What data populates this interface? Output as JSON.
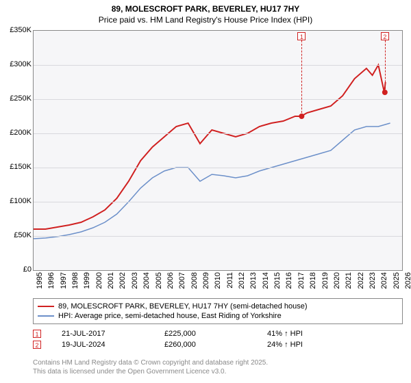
{
  "title_line1": "89, MOLESCROFT PARK, BEVERLEY, HU17 7HY",
  "title_line2": "Price paid vs. HM Land Registry's House Price Index (HPI)",
  "chart": {
    "type": "line",
    "background_color": "#f6f6f8",
    "border_color": "#888888",
    "grid_color": "#d8d8dd",
    "x_years": [
      1995,
      1996,
      1997,
      1998,
      1999,
      2000,
      2001,
      2002,
      2003,
      2004,
      2005,
      2006,
      2007,
      2008,
      2009,
      2010,
      2011,
      2012,
      2013,
      2014,
      2015,
      2016,
      2017,
      2018,
      2019,
      2020,
      2021,
      2022,
      2023,
      2024,
      2025,
      2026
    ],
    "xlim": [
      1995,
      2026
    ],
    "ylim": [
      0,
      350000
    ],
    "ytick_step": 50000,
    "yticks": [
      {
        "v": 0,
        "label": "£0"
      },
      {
        "v": 50000,
        "label": "£50K"
      },
      {
        "v": 100000,
        "label": "£100K"
      },
      {
        "v": 150000,
        "label": "£150K"
      },
      {
        "v": 200000,
        "label": "£200K"
      },
      {
        "v": 250000,
        "label": "£250K"
      },
      {
        "v": 300000,
        "label": "£300K"
      },
      {
        "v": 350000,
        "label": "£350K"
      }
    ],
    "series": [
      {
        "name": "price_paid",
        "color": "#d02020",
        "line_width": 2,
        "points": [
          [
            1995,
            60000
          ],
          [
            1996,
            60000
          ],
          [
            1997,
            63000
          ],
          [
            1998,
            66000
          ],
          [
            1999,
            70000
          ],
          [
            2000,
            78000
          ],
          [
            2001,
            88000
          ],
          [
            2002,
            105000
          ],
          [
            2003,
            130000
          ],
          [
            2004,
            160000
          ],
          [
            2005,
            180000
          ],
          [
            2006,
            195000
          ],
          [
            2007,
            210000
          ],
          [
            2008,
            215000
          ],
          [
            2008.5,
            200000
          ],
          [
            2009,
            185000
          ],
          [
            2009.5,
            195000
          ],
          [
            2010,
            205000
          ],
          [
            2011,
            200000
          ],
          [
            2012,
            195000
          ],
          [
            2013,
            200000
          ],
          [
            2014,
            210000
          ],
          [
            2015,
            215000
          ],
          [
            2016,
            218000
          ],
          [
            2017,
            225000
          ],
          [
            2017.5,
            225000
          ],
          [
            2018,
            230000
          ],
          [
            2019,
            235000
          ],
          [
            2020,
            240000
          ],
          [
            2021,
            255000
          ],
          [
            2022,
            280000
          ],
          [
            2023,
            295000
          ],
          [
            2023.5,
            285000
          ],
          [
            2024,
            300000
          ],
          [
            2024.5,
            260000
          ],
          [
            2024.6,
            275000
          ]
        ]
      },
      {
        "name": "hpi",
        "color": "#6b8fc9",
        "line_width": 1.5,
        "points": [
          [
            1995,
            46000
          ],
          [
            1996,
            47000
          ],
          [
            1997,
            49000
          ],
          [
            1998,
            52000
          ],
          [
            1999,
            56000
          ],
          [
            2000,
            62000
          ],
          [
            2001,
            70000
          ],
          [
            2002,
            82000
          ],
          [
            2003,
            100000
          ],
          [
            2004,
            120000
          ],
          [
            2005,
            135000
          ],
          [
            2006,
            145000
          ],
          [
            2007,
            150000
          ],
          [
            2008,
            150000
          ],
          [
            2008.5,
            140000
          ],
          [
            2009,
            130000
          ],
          [
            2010,
            140000
          ],
          [
            2011,
            138000
          ],
          [
            2012,
            135000
          ],
          [
            2013,
            138000
          ],
          [
            2014,
            145000
          ],
          [
            2015,
            150000
          ],
          [
            2016,
            155000
          ],
          [
            2017,
            160000
          ],
          [
            2018,
            165000
          ],
          [
            2019,
            170000
          ],
          [
            2020,
            175000
          ],
          [
            2021,
            190000
          ],
          [
            2022,
            205000
          ],
          [
            2023,
            210000
          ],
          [
            2024,
            210000
          ],
          [
            2025,
            215000
          ]
        ]
      }
    ],
    "markers": [
      {
        "n": "1",
        "x": 2017.55,
        "y": 225000,
        "color": "#d02020"
      },
      {
        "n": "2",
        "x": 2024.55,
        "y": 260000,
        "color": "#d02020"
      }
    ]
  },
  "legend": {
    "items": [
      {
        "color": "#d02020",
        "label": "89, MOLESCROFT PARK, BEVERLEY, HU17 7HY (semi-detached house)"
      },
      {
        "color": "#6b8fc9",
        "label": "HPI: Average price, semi-detached house, East Riding of Yorkshire"
      }
    ]
  },
  "annotations": [
    {
      "n": "1",
      "color": "#d02020",
      "date": "21-JUL-2017",
      "price": "£225,000",
      "delta": "41% ↑ HPI"
    },
    {
      "n": "2",
      "color": "#d02020",
      "date": "19-JUL-2024",
      "price": "£260,000",
      "delta": "24% ↑ HPI"
    }
  ],
  "footer_line1": "Contains HM Land Registry data © Crown copyright and database right 2025.",
  "footer_line2": "This data is licensed under the Open Government Licence v3.0."
}
